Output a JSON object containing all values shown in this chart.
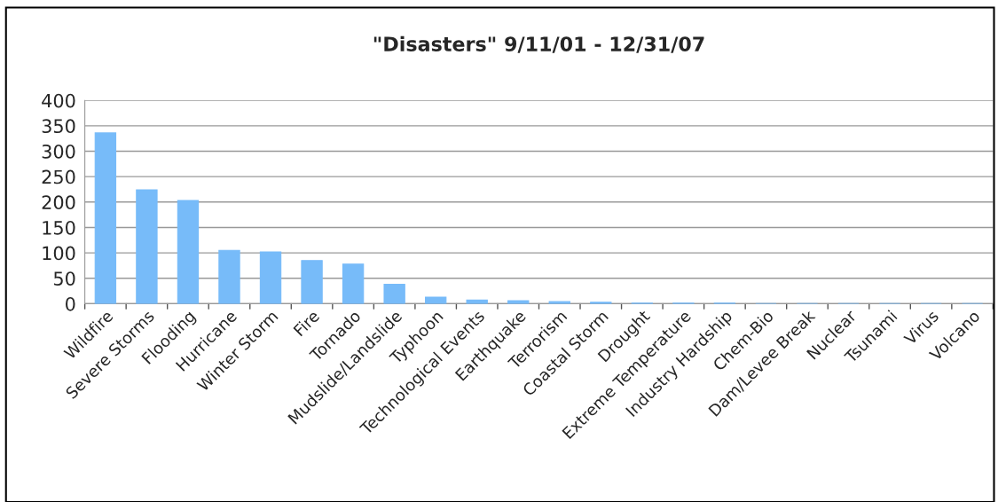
{
  "chart_data": {
    "type": "bar",
    "title": "\"Disasters\" 9/11/01 - 12/31/07",
    "categories": [
      "Wildfire",
      "Severe Storms",
      "Flooding",
      "Hurricane",
      "Winter Storm",
      "Fire",
      "Tornado",
      "Mudslide/Landslide",
      "Typhoon",
      "Technological Events",
      "Earthquake",
      "Terrorism",
      "Coastal Storm",
      "Drought",
      "Extreme Temperature",
      "Industry Hardship",
      "Chem-Bio",
      "Dam/Levee Break",
      "Nuclear",
      "Tsunami",
      "Virus",
      "Volcano"
    ],
    "values": [
      336,
      224,
      203,
      105,
      102,
      85,
      78,
      38,
      13,
      7,
      6,
      4,
      3,
      1,
      1,
      1,
      0,
      0,
      0,
      0,
      0,
      0
    ],
    "color": "#77bbf9",
    "ylim": [
      0,
      400
    ],
    "yticks": [
      0,
      50,
      100,
      150,
      200,
      250,
      300,
      350,
      400
    ],
    "grid": "y"
  }
}
